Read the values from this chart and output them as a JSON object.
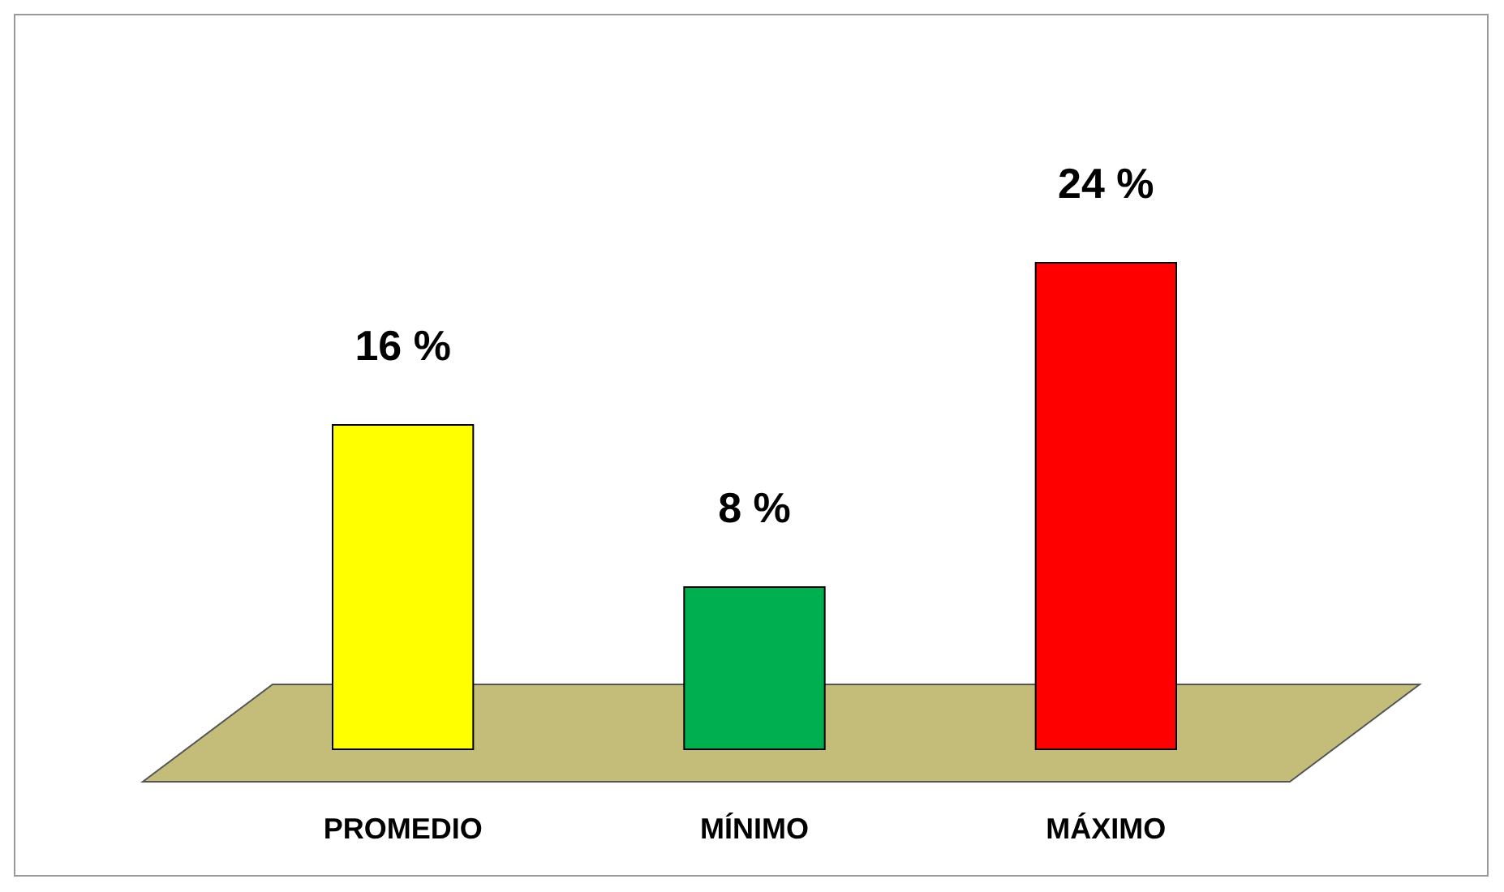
{
  "chart_data": {
    "type": "bar",
    "categories": [
      "PROMEDIO",
      "MÍNIMO",
      "MÁXIMO"
    ],
    "values": [
      16,
      8,
      24
    ],
    "colors": [
      "#ffff00",
      "#00b050",
      "#ff0000"
    ],
    "value_labels": [
      "16 %",
      "8 %",
      "24 %"
    ]
  }
}
